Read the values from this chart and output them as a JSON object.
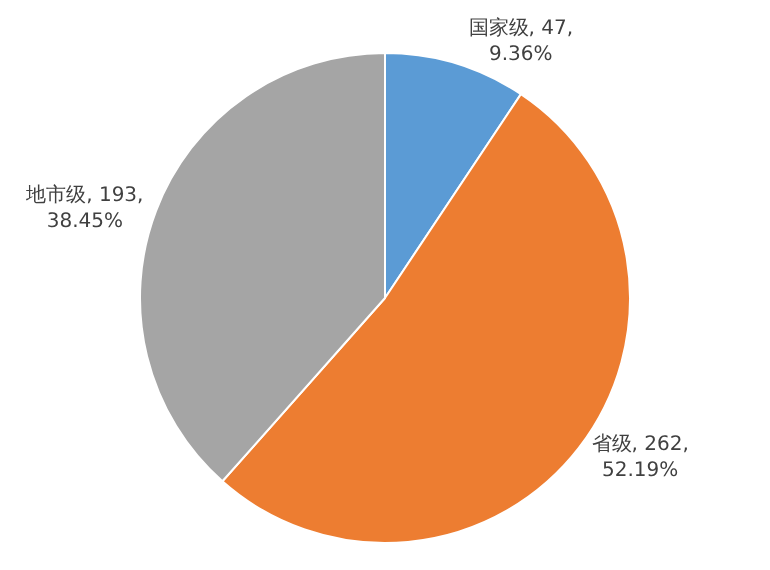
{
  "chart_data": {
    "type": "pie",
    "categories": [
      "国家级",
      "省级",
      "地市级"
    ],
    "values": [
      9.36,
      52.19,
      38.45
    ],
    "value_labels": [
      "47, 9.36%",
      "262, 52.19%",
      "193, 38.45%"
    ],
    "colors": [
      "#5b9bd5",
      "#ed7d31",
      "#a5a5a5"
    ]
  }
}
